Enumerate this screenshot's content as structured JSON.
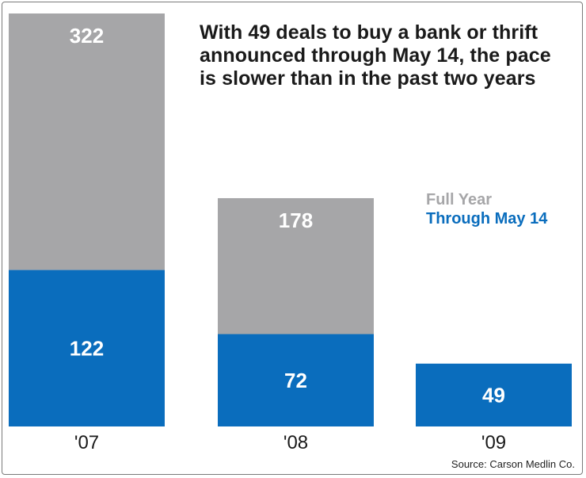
{
  "title": "With 49 deals to buy a bank or thrift announced through May 14, the pace is slower than in the past two years",
  "source": "Source: Carson Medlin Co.",
  "legend": {
    "full_year": "Full Year",
    "through": "Through May 14"
  },
  "colors": {
    "full_year": "#a6a6a8",
    "through": "#0a6dbd"
  },
  "chart_data": {
    "type": "bar",
    "categories": [
      "'07",
      "'08",
      "'09"
    ],
    "series": [
      {
        "name": "Full Year",
        "values": [
          322,
          178,
          null
        ]
      },
      {
        "name": "Through May 14",
        "values": [
          122,
          72,
          49
        ]
      }
    ],
    "ylim": [
      0,
      322
    ],
    "grid": false,
    "legend_position": "right"
  }
}
